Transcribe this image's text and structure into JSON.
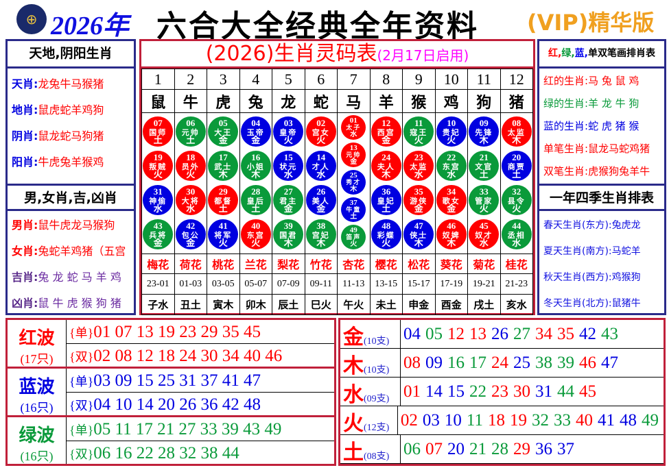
{
  "header": {
    "year": "2026年",
    "title": "六合大全经典全年资料",
    "vip": "(VIP)精华版",
    "logo_icon": "hkjc-logo-icon"
  },
  "colors": {
    "red": "#ff0000",
    "green": "#0a9a3a",
    "blue": "#0000e0"
  },
  "left": {
    "h1": "天地,阴阳生肖",
    "rows1": [
      {
        "k": "天肖:",
        "v": "龙兔牛马猴猪"
      },
      {
        "k": "地肖:",
        "v": "鼠虎蛇羊鸡狗"
      },
      {
        "k": "阴肖:",
        "v": "鼠龙蛇马狗猪"
      },
      {
        "k": "阳肖:",
        "v": "牛虎兔羊猴鸡"
      }
    ],
    "h2": "男,女肖,吉,凶肖",
    "rows2": [
      {
        "k": "男肖:",
        "v": "鼠牛虎龙马猴狗"
      },
      {
        "k": "女肖:",
        "v": "兔蛇羊鸡猪（五宫"
      },
      {
        "k": "吉肖:",
        "v": "兔 龙 蛇 马 羊 鸡"
      },
      {
        "k": "凶肖:",
        "v": "鼠 牛 虎 猴 狗 猪"
      }
    ]
  },
  "right": {
    "h1a": "红,",
    "h1b": "绿,",
    "h1c": "蓝,",
    "h1d": "单双笔画排肖表",
    "rows1": [
      {
        "k": "红的生肖:",
        "v": "马 兔 鼠 鸡",
        "c": "red"
      },
      {
        "k": "绿的生肖:",
        "v": "羊 龙 牛 狗",
        "c": "green"
      },
      {
        "k": "蓝的生肖:",
        "v": "蛇 虎 猪 猴",
        "c": "blue"
      },
      {
        "k": "单笔生肖:",
        "v": "鼠龙马蛇鸡猪",
        "c": "red"
      },
      {
        "k": "双笔生肖:",
        "v": "虎猴狗兔羊牛",
        "c": "red"
      }
    ],
    "h2": "一年四季生肖排表",
    "rows2": [
      {
        "k": "春天生肖(东方):",
        "v": "兔虎龙"
      },
      {
        "k": "夏天生肖(南方):",
        "v": "马蛇羊"
      },
      {
        "k": "秋天生肖(西方):",
        "v": "鸡猴狗"
      },
      {
        "k": "冬天生肖(北方):",
        "v": "鼠猪牛"
      }
    ]
  },
  "center": {
    "title": "(2026)生肖灵码表",
    "subtitle": "(2月17日启用)",
    "columns": [
      {
        "idx": "1",
        "zodiac": "鼠",
        "flower": "梅花",
        "time": "23-01",
        "branch": "子水",
        "balls": [
          [
            "07",
            "国师",
            "土",
            "red"
          ],
          [
            "19",
            "叛贼",
            "火",
            "red"
          ],
          [
            "31",
            "神偷",
            "水",
            "blue"
          ],
          [
            "43",
            "兵将",
            "金",
            "green"
          ]
        ]
      },
      {
        "idx": "2",
        "zodiac": "牛",
        "flower": "荷花",
        "time": "01-03",
        "branch": "丑土",
        "balls": [
          [
            "06",
            "元帅",
            "土",
            "green"
          ],
          [
            "18",
            "员外",
            "火",
            "red"
          ],
          [
            "30",
            "大将",
            "水",
            "red"
          ],
          [
            "42",
            "包公",
            "金",
            "blue"
          ]
        ]
      },
      {
        "idx": "3",
        "zodiac": "虎",
        "flower": "桃花",
        "time": "03-05",
        "branch": "寅木",
        "balls": [
          [
            "05",
            "大王",
            "金",
            "green"
          ],
          [
            "17",
            "武士",
            "木",
            "green"
          ],
          [
            "29",
            "都督",
            "土",
            "red"
          ],
          [
            "41",
            "将军",
            "火",
            "blue"
          ]
        ]
      },
      {
        "idx": "4",
        "zodiac": "兔",
        "flower": "兰花",
        "time": "05-07",
        "branch": "卯木",
        "balls": [
          [
            "04",
            "玉帝",
            "金",
            "blue"
          ],
          [
            "16",
            "小姐",
            "木",
            "green"
          ],
          [
            "28",
            "皇后",
            "土",
            "green"
          ],
          [
            "40",
            "东宫",
            "火",
            "red"
          ]
        ]
      },
      {
        "idx": "5",
        "zodiac": "龙",
        "flower": "梨花",
        "time": "07-09",
        "branch": "辰土",
        "balls": [
          [
            "03",
            "皇帝",
            "火",
            "blue"
          ],
          [
            "15",
            "状元",
            "水",
            "blue"
          ],
          [
            "27",
            "君主",
            "金",
            "green"
          ],
          [
            "39",
            "国君",
            "木",
            "green"
          ]
        ]
      },
      {
        "idx": "6",
        "zodiac": "蛇",
        "flower": "竹花",
        "time": "09-11",
        "branch": "巳火",
        "balls": [
          [
            "02",
            "宫女",
            "火",
            "red"
          ],
          [
            "14",
            "才人",
            "水",
            "blue"
          ],
          [
            "26",
            "美人",
            "金",
            "blue"
          ],
          [
            "38",
            "宫妃",
            "木",
            "green"
          ]
        ]
      },
      {
        "idx": "7",
        "zodiac": "马",
        "flower": "杏花",
        "time": "11-13",
        "branch": "午火",
        "balls": [
          [
            "01",
            "太子",
            "水",
            "red"
          ],
          [
            "13",
            "元帅",
            "金",
            "red"
          ],
          [
            "25",
            "秀才",
            "木",
            "blue"
          ],
          [
            "37",
            "牛童",
            "土",
            "blue"
          ],
          [
            "49",
            "笛声",
            "火",
            "green"
          ]
        ]
      },
      {
        "idx": "8",
        "zodiac": "羊",
        "flower": "樱花",
        "time": "13-15",
        "branch": "未土",
        "balls": [
          [
            "12",
            "西宫",
            "金",
            "red"
          ],
          [
            "24",
            "夫人",
            "木",
            "red"
          ],
          [
            "36",
            "皇妃",
            "土",
            "blue"
          ],
          [
            "48",
            "彩蝶",
            "火",
            "blue"
          ]
        ]
      },
      {
        "idx": "9",
        "zodiac": "猴",
        "flower": "松花",
        "time": "15-17",
        "branch": "申金",
        "balls": [
          [
            "11",
            "寇王",
            "火",
            "green"
          ],
          [
            "23",
            "太监",
            "水",
            "red"
          ],
          [
            "35",
            "游侠",
            "金",
            "red"
          ],
          [
            "47",
            "侠士",
            "木",
            "blue"
          ]
        ]
      },
      {
        "idx": "10",
        "zodiac": "鸡",
        "flower": "葵花",
        "time": "17-19",
        "branch": "酉金",
        "balls": [
          [
            "10",
            "贵妃",
            "火",
            "blue"
          ],
          [
            "22",
            "东宫",
            "水",
            "green"
          ],
          [
            "34",
            "歌女",
            "金",
            "red"
          ],
          [
            "46",
            "奴婢",
            "木",
            "red"
          ]
        ]
      },
      {
        "idx": "11",
        "zodiac": "狗",
        "flower": "菊花",
        "time": "19-21",
        "branch": "戌土",
        "balls": [
          [
            "09",
            "先锋",
            "木",
            "blue"
          ],
          [
            "21",
            "文官",
            "土",
            "green"
          ],
          [
            "33",
            "管家",
            "火",
            "green"
          ],
          [
            "45",
            "奴才",
            "水",
            "red"
          ]
        ]
      },
      {
        "idx": "12",
        "zodiac": "猪",
        "flower": "桂花",
        "time": "21-23",
        "branch": "亥水",
        "balls": [
          [
            "08",
            "太监",
            "木",
            "red"
          ],
          [
            "20",
            "商贾",
            "土",
            "blue"
          ],
          [
            "32",
            "县令",
            "火",
            "green"
          ],
          [
            "44",
            "丞相",
            "水",
            "green"
          ]
        ]
      }
    ]
  },
  "waves": [
    {
      "name": "红波",
      "count": "(17只)",
      "color": "red",
      "single_tag": "{单}",
      "single": "01 07 13 19 23 29 35 45",
      "double_tag": "{双}",
      "double": "02 08 12 18 24 30 34 40 46"
    },
    {
      "name": "蓝波",
      "count": "(16只)",
      "color": "blue",
      "single_tag": "{单}",
      "single": "03 09 15 25 31 37 41 47",
      "double_tag": "{双}",
      "double": "04 10 14 20 26 36 42 48"
    },
    {
      "name": "绿波",
      "count": "(16只)",
      "color": "green",
      "single_tag": "{单}",
      "single": "05 11 17 21 27 33 39 43 49",
      "double_tag": "{双}",
      "double": "06 16 22 28 32 38 44"
    }
  ],
  "elements": [
    {
      "name": "金",
      "count": "(10支)",
      "nums": [
        "04",
        "05",
        "12",
        "13",
        "26",
        "27",
        "34",
        "35",
        "42",
        "43"
      ]
    },
    {
      "name": "木",
      "count": "(10支)",
      "nums": [
        "08",
        "09",
        "16",
        "17",
        "24",
        "25",
        "38",
        "39",
        "46",
        "47"
      ]
    },
    {
      "name": "水",
      "count": "(09支)",
      "nums": [
        "01",
        "14",
        "15",
        "22",
        "23",
        "30",
        "31",
        "44",
        "45"
      ]
    },
    {
      "name": "火",
      "count": "(12支)",
      "nums": [
        "02",
        "03",
        "10",
        "11",
        "18",
        "19",
        "32",
        "33",
        "40",
        "41",
        "48",
        "49"
      ]
    },
    {
      "name": "土",
      "count": "(08支)",
      "nums": [
        "06",
        "07",
        "20",
        "21",
        "28",
        "29",
        "36",
        "37"
      ]
    }
  ]
}
